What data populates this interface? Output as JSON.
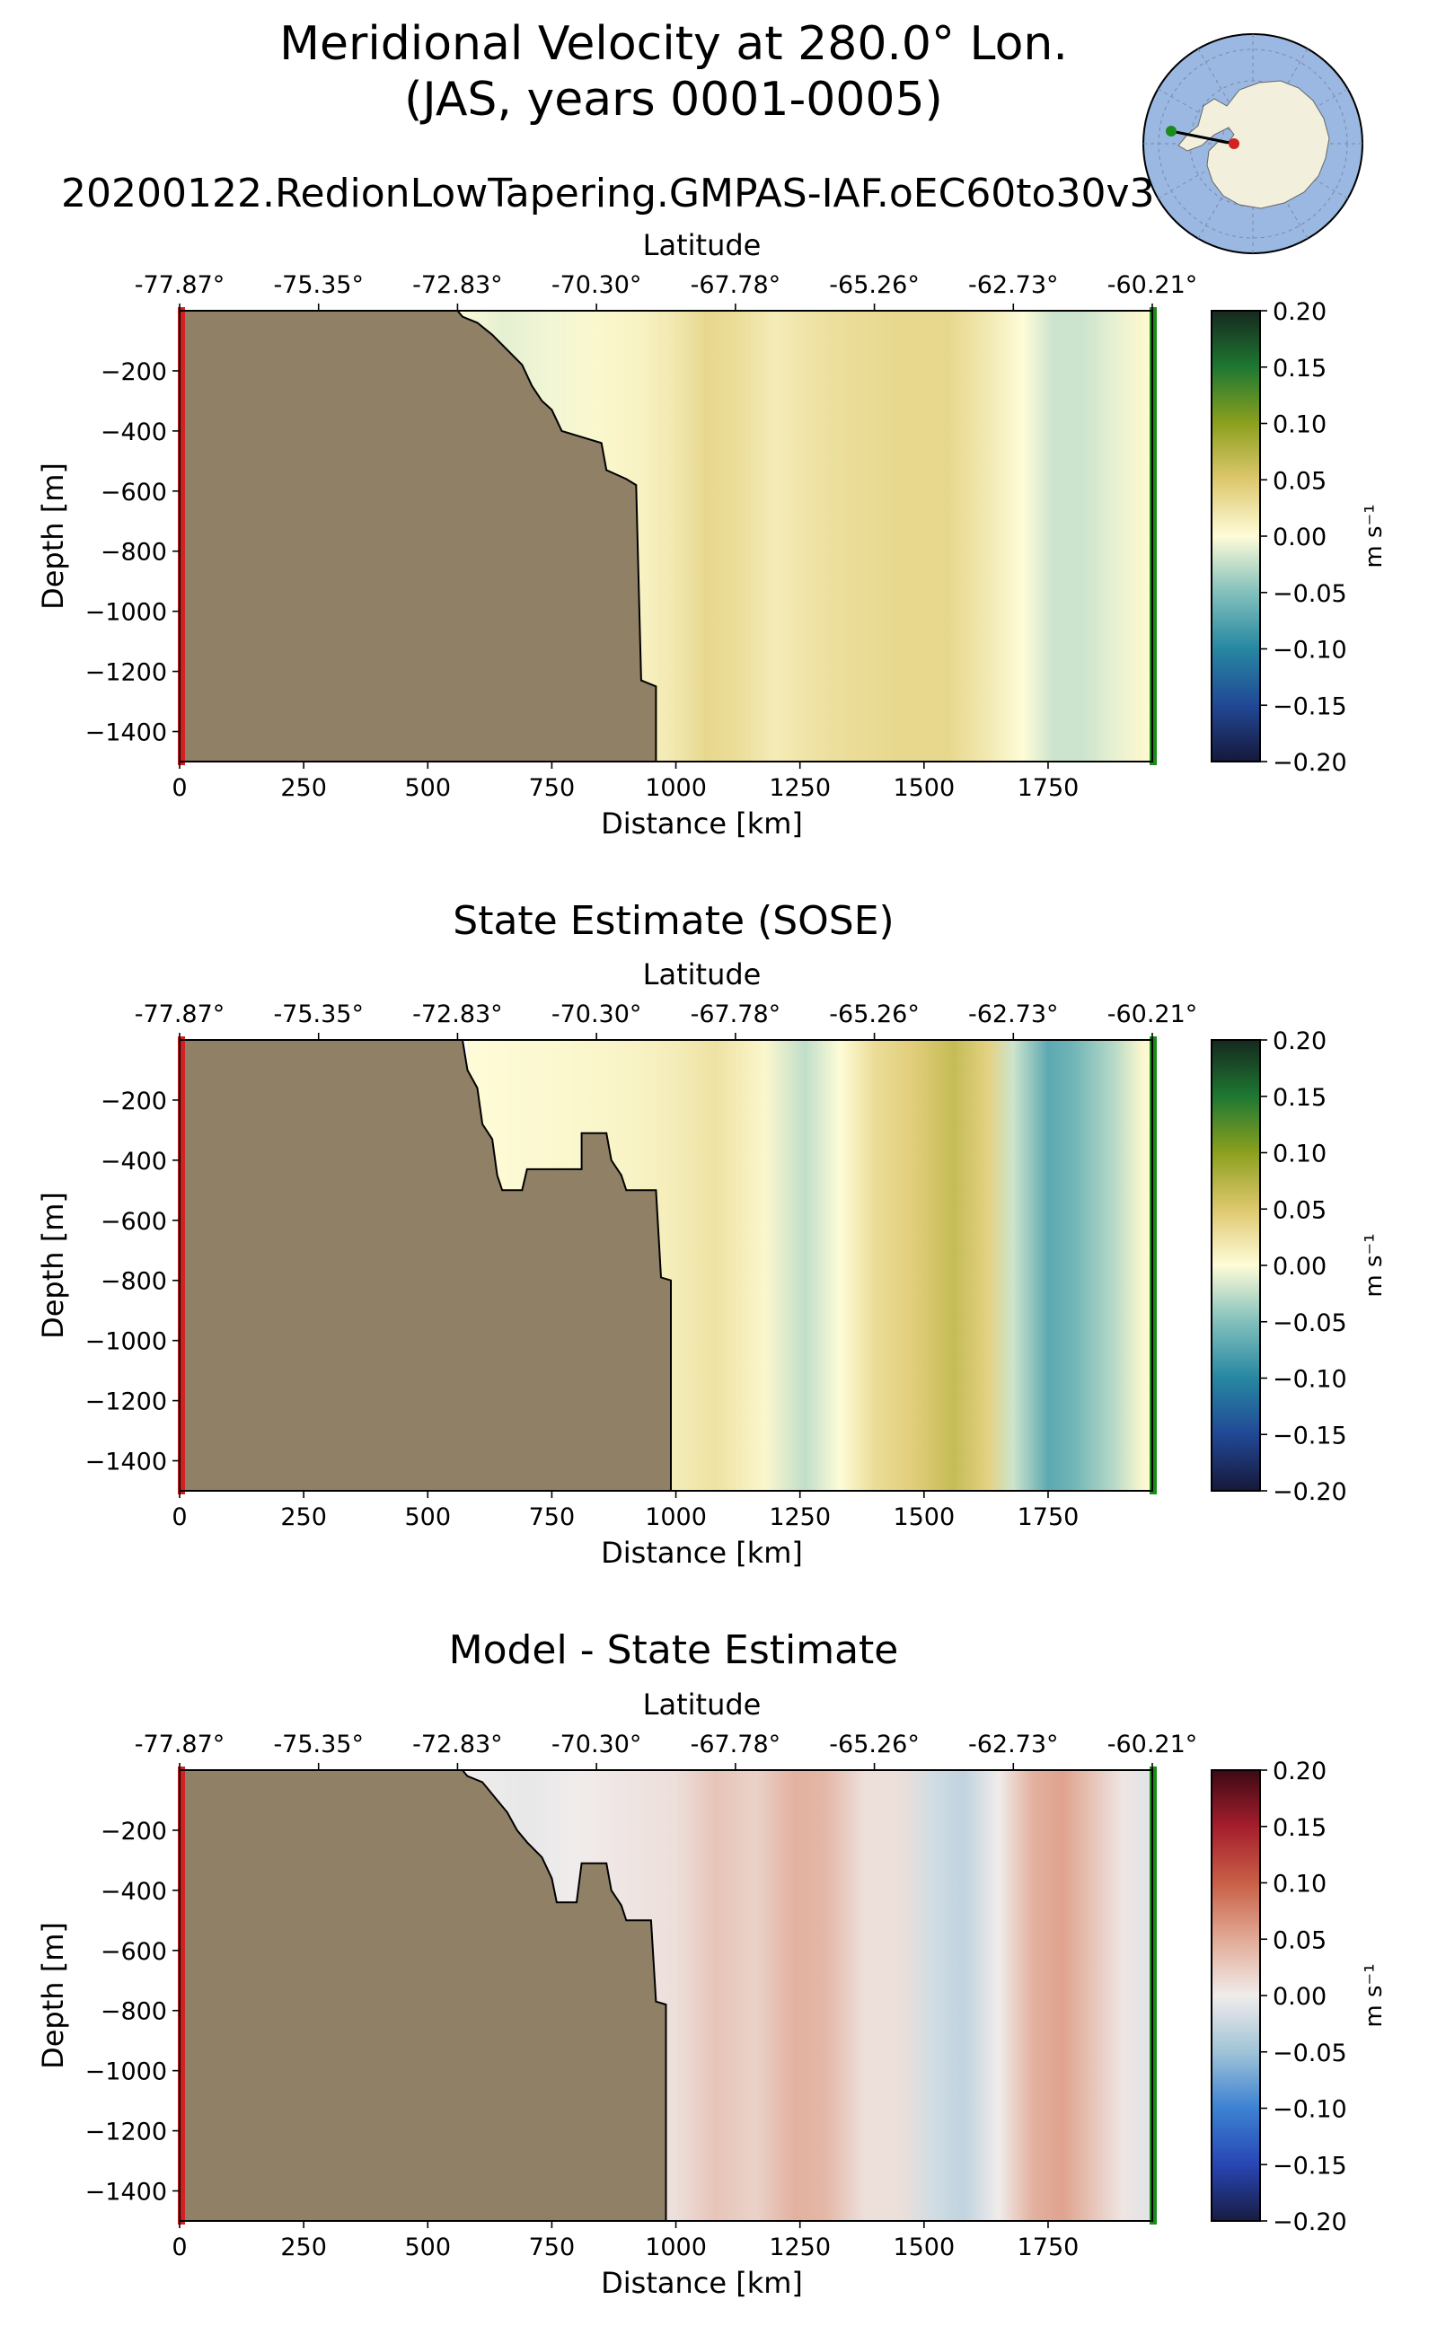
{
  "figure": {
    "title_line1": "Meridional Velocity at 280.0° Lon.",
    "title_line2": "(JAS, years 0001-0005)",
    "subtitle": "20200122.RedionLowTapering.GMPAS-IAF.oEC60to30v3"
  },
  "chart_data": [
    {
      "type": "heatmap",
      "panel_title": "",
      "xlabel": "Distance [km]",
      "ylabel": "Depth [m]",
      "top_xlabel": "Latitude",
      "xlim": [
        0,
        1960
      ],
      "ylim": [
        -1500,
        0
      ],
      "x_ticks": [
        0,
        250,
        500,
        750,
        1000,
        1250,
        1500,
        1750
      ],
      "x_tick_labels": [
        "0",
        "250",
        "500",
        "750",
        "1000",
        "1250",
        "1500",
        "1750"
      ],
      "y_ticks": [
        -200,
        -400,
        -600,
        -800,
        -1000,
        -1200,
        -1400
      ],
      "y_tick_labels": [
        "−200",
        "−400",
        "−600",
        "−800",
        "−1000",
        "−1200",
        "−1400"
      ],
      "lat_tick_distances": [
        0,
        280,
        560,
        840,
        1120,
        1400,
        1680,
        1960
      ],
      "lat_tick_labels": [
        "-77.87°",
        "-75.35°",
        "-72.83°",
        "-70.30°",
        "-67.78°",
        "-65.26°",
        "-62.73°",
        "-60.21°"
      ],
      "colorbar": {
        "cmap": "delta",
        "min": -0.2,
        "max": 0.2,
        "ticks": [
          0.2,
          0.15,
          0.1,
          0.05,
          0.0,
          -0.05,
          -0.1,
          -0.15,
          -0.2
        ],
        "tick_labels": [
          "0.20",
          "0.15",
          "0.10",
          "0.05",
          "0.00",
          "−0.05",
          "−0.10",
          "−0.15",
          "−0.20"
        ],
        "label": "m s⁻¹"
      },
      "field_columns": {
        "x_km": [
          560,
          650,
          750,
          850,
          930,
          1000,
          1060,
          1120,
          1200,
          1280,
          1350,
          1450,
          1550,
          1620,
          1700,
          1760,
          1820,
          1880,
          1940,
          1960
        ],
        "values": [
          0.0,
          -0.01,
          -0.005,
          0.005,
          0.01,
          0.02,
          0.035,
          0.03,
          0.015,
          0.025,
          0.03,
          0.035,
          0.035,
          0.02,
          0.0,
          -0.02,
          -0.02,
          -0.01,
          0.005,
          0.0
        ]
      },
      "bathymetry_km_depth": [
        [
          560,
          0
        ],
        [
          570,
          -20
        ],
        [
          600,
          -40
        ],
        [
          630,
          -80
        ],
        [
          660,
          -130
        ],
        [
          690,
          -180
        ],
        [
          710,
          -250
        ],
        [
          730,
          -300
        ],
        [
          750,
          -330
        ],
        [
          770,
          -400
        ],
        [
          850,
          -440
        ],
        [
          860,
          -530
        ],
        [
          900,
          -560
        ],
        [
          920,
          -580
        ],
        [
          930,
          -1230
        ],
        [
          960,
          -1250
        ],
        [
          960,
          -1500
        ]
      ],
      "left_marker_color": "#d42020",
      "right_marker_color": "#1a8c1a"
    },
    {
      "type": "heatmap",
      "panel_title": "State Estimate (SOSE)",
      "xlabel": "Distance [km]",
      "ylabel": "Depth [m]",
      "top_xlabel": "Latitude",
      "xlim": [
        0,
        1960
      ],
      "ylim": [
        -1500,
        0
      ],
      "x_ticks": [
        0,
        250,
        500,
        750,
        1000,
        1250,
        1500,
        1750
      ],
      "x_tick_labels": [
        "0",
        "250",
        "500",
        "750",
        "1000",
        "1250",
        "1500",
        "1750"
      ],
      "y_ticks": [
        -200,
        -400,
        -600,
        -800,
        -1000,
        -1200,
        -1400
      ],
      "y_tick_labels": [
        "−200",
        "−400",
        "−600",
        "−800",
        "−1000",
        "−1200",
        "−1400"
      ],
      "lat_tick_distances": [
        0,
        280,
        560,
        840,
        1120,
        1400,
        1680,
        1960
      ],
      "lat_tick_labels": [
        "-77.87°",
        "-75.35°",
        "-72.83°",
        "-70.30°",
        "-67.78°",
        "-65.26°",
        "-62.73°",
        "-60.21°"
      ],
      "colorbar": {
        "cmap": "delta",
        "min": -0.2,
        "max": 0.2,
        "ticks": [
          0.2,
          0.15,
          0.1,
          0.05,
          0.0,
          -0.05,
          -0.1,
          -0.15,
          -0.2
        ],
        "tick_labels": [
          "0.20",
          "0.15",
          "0.10",
          "0.05",
          "0.00",
          "−0.05",
          "−0.10",
          "−0.15",
          "−0.20"
        ],
        "label": "m s⁻¹"
      },
      "field_columns": {
        "x_km": [
          580,
          700,
          800,
          900,
          1000,
          1080,
          1180,
          1260,
          1330,
          1400,
          1480,
          1560,
          1630,
          1680,
          1750,
          1800,
          1880,
          1940,
          1960
        ],
        "values": [
          0.0,
          0.003,
          0.005,
          0.008,
          0.015,
          0.025,
          0.005,
          -0.025,
          0.0,
          0.03,
          0.045,
          0.065,
          0.04,
          -0.02,
          -0.07,
          -0.06,
          -0.03,
          0.005,
          0.0
        ]
      },
      "bathymetry_km_depth": [
        [
          570,
          0
        ],
        [
          580,
          -100
        ],
        [
          600,
          -160
        ],
        [
          610,
          -280
        ],
        [
          630,
          -330
        ],
        [
          640,
          -450
        ],
        [
          650,
          -500
        ],
        [
          690,
          -500
        ],
        [
          700,
          -430
        ],
        [
          810,
          -430
        ],
        [
          810,
          -310
        ],
        [
          860,
          -310
        ],
        [
          870,
          -400
        ],
        [
          890,
          -450
        ],
        [
          900,
          -500
        ],
        [
          960,
          -500
        ],
        [
          970,
          -790
        ],
        [
          990,
          -800
        ],
        [
          990,
          -1500
        ]
      ],
      "left_marker_color": "#d42020",
      "right_marker_color": "#1a8c1a"
    },
    {
      "type": "heatmap",
      "panel_title": "Model - State Estimate",
      "xlabel": "Distance [km]",
      "ylabel": "Depth [m]",
      "top_xlabel": "Latitude",
      "xlim": [
        0,
        1960
      ],
      "ylim": [
        -1500,
        0
      ],
      "x_ticks": [
        0,
        250,
        500,
        750,
        1000,
        1250,
        1500,
        1750
      ],
      "x_tick_labels": [
        "0",
        "250",
        "500",
        "750",
        "1000",
        "1250",
        "1500",
        "1750"
      ],
      "y_ticks": [
        -200,
        -400,
        -600,
        -800,
        -1000,
        -1200,
        -1400
      ],
      "y_tick_labels": [
        "−200",
        "−400",
        "−600",
        "−800",
        "−1000",
        "−1200",
        "−1400"
      ],
      "lat_tick_distances": [
        0,
        280,
        560,
        840,
        1120,
        1400,
        1680,
        1960
      ],
      "lat_tick_labels": [
        "-77.87°",
        "-75.35°",
        "-72.83°",
        "-70.30°",
        "-67.78°",
        "-65.26°",
        "-62.73°",
        "-60.21°"
      ],
      "colorbar": {
        "cmap": "balance",
        "min": -0.2,
        "max": 0.2,
        "ticks": [
          0.2,
          0.15,
          0.1,
          0.05,
          0.0,
          -0.05,
          -0.1,
          -0.15,
          -0.2
        ],
        "tick_labels": [
          "0.20",
          "0.15",
          "0.10",
          "0.05",
          "0.00",
          "−0.05",
          "−0.10",
          "−0.15",
          "−0.20"
        ],
        "label": "m s⁻¹"
      },
      "field_columns": {
        "x_km": [
          580,
          700,
          800,
          900,
          1000,
          1080,
          1160,
          1240,
          1300,
          1380,
          1450,
          1520,
          1580,
          1650,
          1720,
          1780,
          1840,
          1900,
          1960
        ],
        "values": [
          0.0,
          -0.005,
          0.0,
          0.005,
          0.01,
          0.03,
          0.02,
          0.045,
          0.04,
          0.01,
          0.01,
          -0.02,
          -0.03,
          0.0,
          0.045,
          0.055,
          0.03,
          0.005,
          -0.01
        ]
      },
      "bathymetry_km_depth": [
        [
          570,
          0
        ],
        [
          580,
          -20
        ],
        [
          610,
          -40
        ],
        [
          640,
          -100
        ],
        [
          660,
          -140
        ],
        [
          680,
          -200
        ],
        [
          700,
          -240
        ],
        [
          730,
          -290
        ],
        [
          750,
          -360
        ],
        [
          760,
          -440
        ],
        [
          800,
          -440
        ],
        [
          810,
          -310
        ],
        [
          860,
          -310
        ],
        [
          870,
          -400
        ],
        [
          890,
          -450
        ],
        [
          900,
          -500
        ],
        [
          950,
          -500
        ],
        [
          960,
          -770
        ],
        [
          980,
          -780
        ],
        [
          980,
          -1500
        ]
      ],
      "left_marker_color": "#d42020",
      "right_marker_color": "#1a8c1a"
    }
  ],
  "inset_map": {
    "ocean_color": "#9bb8e2",
    "land_color": "#f2efdd",
    "start_point_color": "#d42020",
    "end_point_color": "#1a8c1a"
  }
}
